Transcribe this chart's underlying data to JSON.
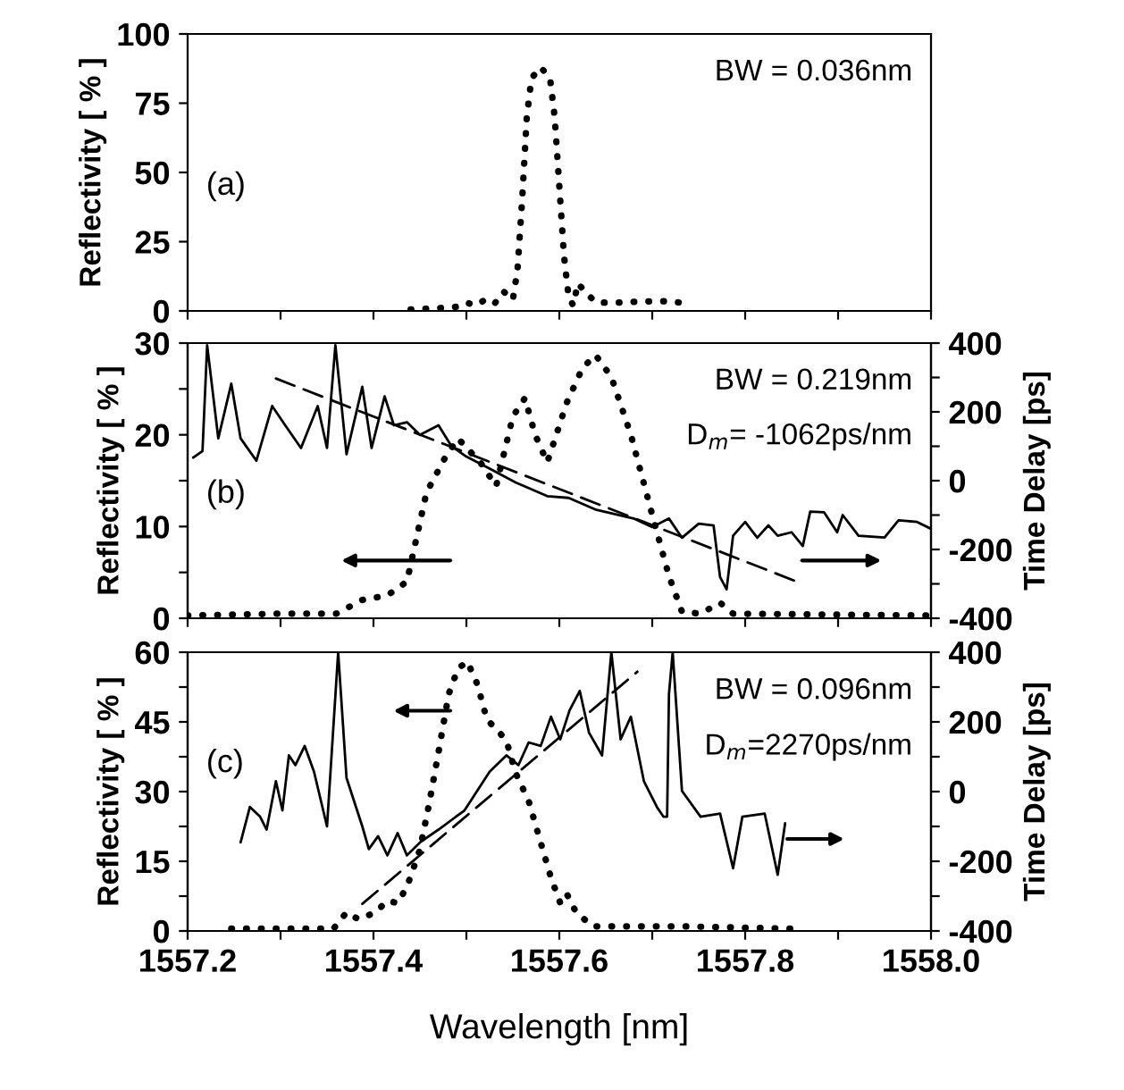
{
  "chart_data": [
    {
      "type": "line",
      "xlim": [
        1557.2,
        1558.0
      ],
      "xticks": [
        1557.2,
        {
          "value": 1557.3,
          "label": null
        },
        1557.4,
        {
          "value": 1557.5,
          "label": null
        },
        1557.6,
        {
          "value": 1557.7,
          "label": null
        },
        1557.8,
        {
          "value": 1557.9,
          "label": null
        },
        1558.0
      ],
      "tick_labels": "y",
      "ylim": [
        0,
        100
      ],
      "yticks": [
        0,
        25,
        50,
        75,
        100
      ],
      "ylabel": "Reflectivity [ % ]",
      "annotations": [
        "(a)",
        "BW = 0.036nm"
      ],
      "series": [
        {
          "type": "line",
          "color": "#000000",
          "line_style": "dotted",
          "x": [
            1557.44,
            1557.47,
            1557.49,
            1557.5,
            1557.51,
            1557.52,
            1557.53,
            1557.54,
            1557.55,
            1557.555,
            1557.56,
            1557.565,
            1557.57,
            1557.58,
            1557.59,
            1557.595,
            1557.6,
            1557.605,
            1557.61,
            1557.615,
            1557.62,
            1557.63,
            1557.64,
            1557.66,
            1557.7,
            1557.72,
            1557.74
          ],
          "values": [
            0.5,
            1,
            1.5,
            3,
            2,
            4,
            2.5,
            7,
            4,
            15,
            40,
            70,
            84,
            88,
            84,
            70,
            45,
            20,
            5,
            2,
            10,
            6,
            3,
            3,
            3.5,
            3.5,
            2.5
          ]
        }
      ]
    },
    {
      "type": "line",
      "xlim": [
        1557.2,
        1558.0
      ],
      "xticks": [
        1557.2,
        {
          "value": 1557.3,
          "label": null
        },
        1557.4,
        {
          "value": 1557.5,
          "label": null
        },
        1557.6,
        {
          "value": 1557.7,
          "label": null
        },
        1557.8,
        {
          "value": 1557.9,
          "label": null
        },
        1558.0
      ],
      "tick_labels": "y",
      "ylim": [
        0,
        30
      ],
      "yticks": [
        0,
        {
          "value": 5,
          "label": null
        },
        10,
        {
          "value": 15,
          "label": null
        },
        20,
        {
          "value": 25,
          "label": null
        },
        30
      ],
      "ylabel": "Reflectivity [ % ]",
      "y2lim": [
        -400,
        400
      ],
      "y2ticks": [
        -400,
        {
          "value": -300,
          "label": null
        },
        -200,
        {
          "value": -100,
          "label": null
        },
        0,
        {
          "value": 100,
          "label": null
        },
        200,
        {
          "value": 300,
          "label": null
        },
        400
      ],
      "y2label": "Time Delay [ps]",
      "annotations": [
        "(b)",
        "BW = 0.219nm",
        "D$_{m}$= -1062ps/nm"
      ],
      "series": [
        {
          "type": "line",
          "color": "#000000",
          "line_style": "dotted",
          "x": [
            1557.2,
            1557.3,
            1557.36,
            1557.388,
            1557.415,
            1557.436,
            1557.457,
            1557.477,
            1557.491,
            1557.501,
            1557.515,
            1557.532,
            1557.55,
            1557.563,
            1557.574,
            1557.587,
            1557.608,
            1557.625,
            1557.639,
            1557.656,
            1557.677,
            1557.701,
            1557.718,
            1557.732,
            1557.752,
            1557.773,
            1557.787,
            1558.0
          ],
          "values": [
            0.3,
            0.5,
            0.5,
            2,
            2.5,
            4,
            13.7,
            17.5,
            19.6,
            18.5,
            17,
            14.4,
            22,
            24,
            20,
            17,
            23.5,
            27.3,
            28.7,
            26.3,
            20,
            10.9,
            4.6,
            0.7,
            0.5,
            1.7,
            0.5,
            0.3
          ]
        },
        {
          "type": "line",
          "axis": "y2",
          "color": "#000000",
          "line_style": "solid",
          "x": [
            1557.206,
            1557.216,
            1557.221,
            1557.233,
            1557.247,
            1557.257,
            1557.274,
            1557.291,
            1557.305,
            1557.322,
            1557.34,
            1557.35,
            1557.359,
            1557.371,
            1557.388,
            1557.398,
            1557.412,
            1557.422,
            1557.436,
            1557.45,
            1557.47,
            1557.484,
            1557.5,
            1557.525,
            1557.553,
            1557.587,
            1557.61,
            1557.64,
            1557.68,
            1557.7,
            1557.718,
            1557.732,
            1557.75,
            1557.766,
            1557.773,
            1557.78,
            1557.787,
            1557.8,
            1557.813,
            1557.825,
            1557.835,
            1557.85,
            1557.862,
            1557.87,
            1557.885,
            1557.899,
            1557.905,
            1557.922,
            1557.95,
            1557.965,
            1557.985,
            1558.0
          ],
          "values": [
            67,
            86,
            394,
            123,
            282,
            123,
            58,
            217,
            161,
            95,
            217,
            95,
            394,
            77,
            273,
            95,
            245,
            161,
            170,
            133,
            161,
            100,
            70,
            35,
            -5,
            -45,
            -50,
            -85,
            -110,
            -135,
            -110,
            -166,
            -125,
            -130,
            -280,
            -316,
            -160,
            -120,
            -166,
            -130,
            -160,
            -150,
            -190,
            -90,
            -92,
            -150,
            -100,
            -160,
            -165,
            -115,
            -120,
            -140
          ]
        },
        {
          "type": "line",
          "axis": "y2",
          "color": "#000000",
          "line_style": "dashed",
          "x": [
            1557.295,
            1557.859
          ],
          "values": [
            297,
            -297
          ]
        }
      ]
    },
    {
      "type": "line",
      "xlim": [
        1557.2,
        1558.0
      ],
      "xticks": [
        1557.2,
        {
          "value": 1557.3,
          "label": null
        },
        1557.4,
        {
          "value": 1557.5,
          "label": null
        },
        1557.6,
        {
          "value": 1557.7,
          "label": null
        },
        1557.8,
        {
          "value": 1557.9,
          "label": null
        },
        {
          "value": 1558.0,
          "label": "1558.0"
        }
      ],
      "xlabel": "Wavelength [nm]",
      "ylim": [
        0,
        60
      ],
      "yticks": [
        0,
        {
          "value": 7.5,
          "label": null
        },
        15,
        {
          "value": 22.5,
          "label": null
        },
        30,
        {
          "value": 37.5,
          "label": null
        },
        45,
        {
          "value": 52.5,
          "label": null
        },
        60
      ],
      "ylabel": "Reflectivity [ % ]",
      "y2lim": [
        -400,
        400
      ],
      "y2ticks": [
        -400,
        {
          "value": -300,
          "label": null
        },
        -200,
        {
          "value": -100,
          "label": null
        },
        0,
        {
          "value": 100,
          "label": null
        },
        200,
        {
          "value": 300,
          "label": null
        },
        400
      ],
      "y2label": "Time Delay [ps]",
      "annotations": [
        "(c)",
        "BW = 0.096nm",
        "D$_{m}$=2270ps/nm"
      ],
      "series": [
        {
          "type": "line",
          "color": "#000000",
          "line_style": "dotted",
          "x": [
            1557.247,
            1557.3,
            1557.357,
            1557.371,
            1557.384,
            1557.402,
            1557.415,
            1557.426,
            1557.436,
            1557.45,
            1557.46,
            1557.47,
            1557.481,
            1557.491,
            1557.501,
            1557.512,
            1557.522,
            1557.532,
            1557.543,
            1557.553,
            1557.567,
            1557.58,
            1557.591,
            1557.601,
            1557.608,
            1557.618,
            1557.636,
            1557.663,
            1557.732,
            1557.849
          ],
          "values": [
            0.5,
            0.5,
            0.5,
            4,
            2.5,
            4,
            6.5,
            6,
            9.5,
            17.5,
            27.5,
            38.5,
            51,
            56.5,
            58,
            53,
            45.5,
            43.5,
            41,
            34,
            28,
            19,
            11.5,
            6,
            8,
            4,
            1,
            1,
            1,
            0.5
          ]
        },
        {
          "type": "line",
          "axis": "y2",
          "color": "#000000",
          "line_style": "solid",
          "x": [
            1557.257,
            1557.267,
            1557.278,
            1557.285,
            1557.295,
            1557.302,
            1557.309,
            1557.316,
            1557.326,
            1557.336,
            1557.35,
            1557.362,
            1557.371,
            1557.388,
            1557.395,
            1557.405,
            1557.415,
            1557.426,
            1557.436,
            1557.45,
            1557.47,
            1557.498,
            1557.525,
            1557.543,
            1557.556,
            1557.567,
            1557.58,
            1557.591,
            1557.601,
            1557.611,
            1557.622,
            1557.632,
            1557.646,
            1557.656,
            1557.666,
            1557.677,
            1557.691,
            1557.705,
            1557.712,
            1557.716,
            1557.718,
            1557.722,
            1557.732,
            1557.752,
            1557.773,
            1557.787,
            1557.797,
            1557.821,
            1557.835,
            1557.843
          ],
          "values": [
            -146,
            -44,
            -72,
            -109,
            30,
            -54,
            104,
            76,
            131,
            57,
            -100,
            400,
            39,
            -100,
            -165,
            -128,
            -183,
            -119,
            -183,
            -146,
            -109,
            -54,
            57,
            104,
            76,
            141,
            131,
            215,
            150,
            233,
            289,
            169,
            104,
            400,
            150,
            215,
            30,
            -44,
            -72,
            -72,
            280,
            400,
            2,
            -72,
            -63,
            -220,
            -72,
            -63,
            -239,
            -91
          ]
        },
        {
          "type": "line",
          "axis": "y2",
          "color": "#000000",
          "line_style": "dashed",
          "x": [
            1557.388,
            1557.684
          ],
          "values": [
            -322,
            344
          ]
        }
      ]
    }
  ]
}
